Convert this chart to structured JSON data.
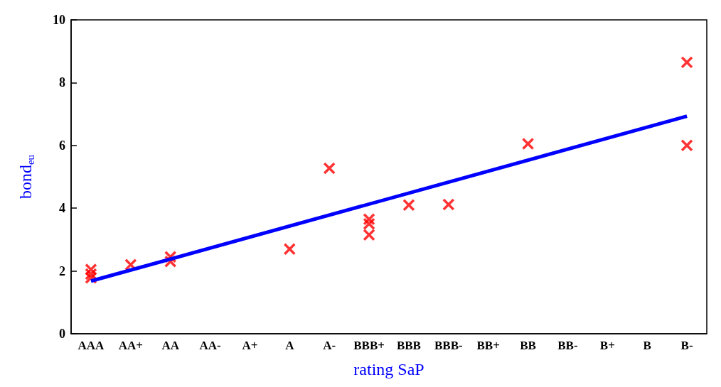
{
  "chart_data": {
    "type": "scatter",
    "xlabel": "rating SaP",
    "ylabel": "bond$_{eu}$",
    "categories": [
      "AAA",
      "AA+",
      "AA",
      "AA-",
      "A+",
      "A",
      "A-",
      "BBB+",
      "BBB",
      "BBB-",
      "BB+",
      "BB",
      "BB-",
      "B+",
      "B",
      "B-"
    ],
    "series": [
      {
        "color": "#ff0000",
        "marker": "cross",
        "x": [
          "AAA",
          "AAA",
          "AAA",
          "AA+",
          "AA",
          "AA",
          "A",
          "A-",
          "BBB+",
          "BBB+",
          "BBB+",
          "BBB",
          "BBB-",
          "BB",
          "B-",
          "B-"
        ],
        "values": [
          2.05,
          1.9,
          1.78,
          2.2,
          2.45,
          2.3,
          2.7,
          5.27,
          3.65,
          3.5,
          3.15,
          4.1,
          4.12,
          6.05,
          8.65,
          6.0
        ]
      },
      {
        "type": "line",
        "color": "#0000ff",
        "x": [
          "AAA",
          "B-"
        ],
        "values": [
          1.68,
          6.93
        ]
      }
    ],
    "ylim": [
      0,
      10
    ],
    "yticks": [
      0,
      2,
      4,
      6,
      8,
      10
    ],
    "grid": false
  }
}
